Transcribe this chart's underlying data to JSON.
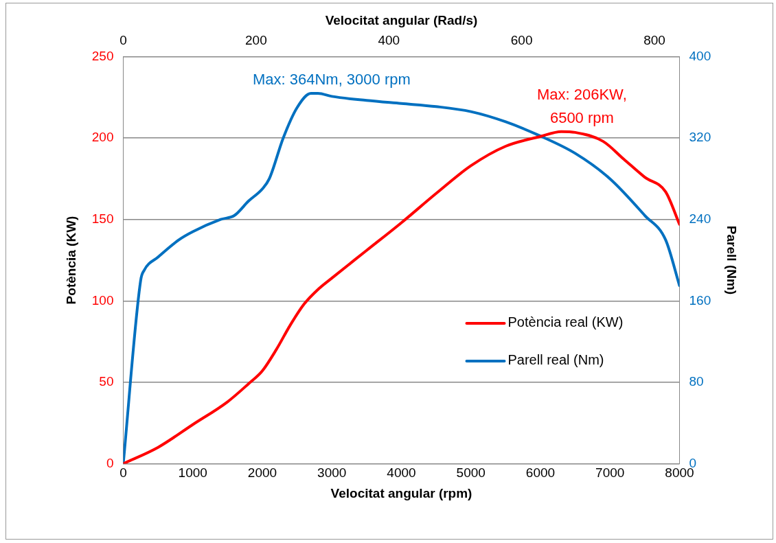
{
  "chart_data": {
    "type": "line",
    "xlabel": "Velocitat angular (rpm)",
    "x2label": "Velocitat angular (Rad/s)",
    "ylabel": "Potència (KW)",
    "y2label": "Parell (Nm)",
    "xlim": [
      0,
      8000
    ],
    "xticks": [
      0,
      1000,
      2000,
      3000,
      4000,
      5000,
      6000,
      7000,
      8000
    ],
    "x2lim": [
      0,
      837.76
    ],
    "x2ticks": [
      0,
      200,
      400,
      600,
      800
    ],
    "ylim": [
      0,
      250
    ],
    "yticks": [
      0,
      50,
      100,
      150,
      200,
      250
    ],
    "y2lim": [
      0,
      400
    ],
    "y2ticks": [
      0,
      80,
      160,
      240,
      320,
      400
    ],
    "grid": "y",
    "legend": "right",
    "marker": "none",
    "line_style": "solid",
    "series": [
      {
        "name": "Potència real (KW)",
        "color": "#ff0000",
        "x": [
          0,
          500,
          1000,
          1500,
          1800,
          2000,
          2200,
          2400,
          2600,
          2800,
          3000,
          3500,
          4000,
          4500,
          5000,
          5500,
          6000,
          6300,
          6500,
          6900,
          7200,
          7500,
          7800,
          8000
        ],
        "values": [
          0,
          10,
          24,
          38,
          49,
          57,
          70,
          85,
          98,
          107,
          114,
          131,
          148,
          166,
          183,
          195,
          201,
          204,
          203.5,
          198,
          187,
          176,
          167,
          147
        ]
      },
      {
        "name": "Parell real (Nm)",
        "color": "#0070c0",
        "axis": "y2",
        "x": [
          0,
          250,
          300,
          500,
          800,
          1000,
          1400,
          1600,
          1800,
          2000,
          2100,
          2300,
          2500,
          2700,
          2800,
          3000,
          3500,
          4000,
          4500,
          5000,
          5500,
          6000,
          6500,
          7000,
          7500,
          7800,
          8000
        ],
        "values": [
          0,
          180,
          190,
          203,
          220,
          228,
          240,
          244,
          258,
          270,
          280,
          320,
          350,
          364,
          364,
          361,
          357,
          354,
          351,
          346,
          336,
          322,
          305,
          280,
          244,
          220,
          175
        ]
      }
    ],
    "annotations": [
      "Max: 206KW,\n6500 rpm",
      "Max: 364Nm, 3000 rpm"
    ]
  }
}
